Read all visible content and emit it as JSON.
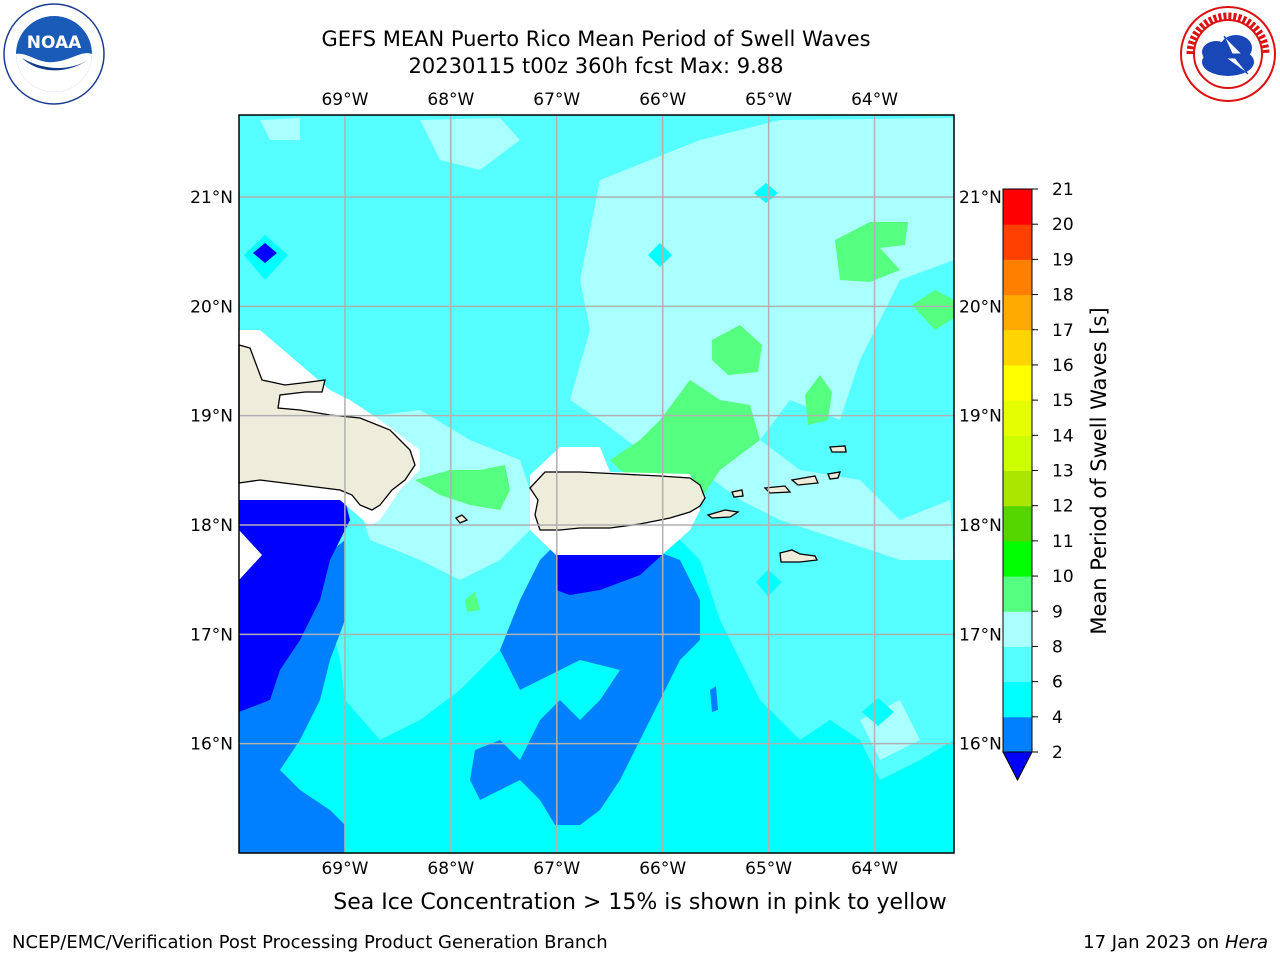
{
  "header": {
    "title_line1": "GEFS MEAN Puerto Rico Mean Period of Swell Waves",
    "title_line2": "20230115 t00z 360h fcst   Max: 9.88"
  },
  "logos": {
    "left": {
      "name": "noaa-logo",
      "text": "NOAA",
      "ring_text": "NATIONAL OCEANIC AND ATMOSPHERIC ADMINISTRATION · U.S. DEPARTMENT OF COMMERCE"
    },
    "right": {
      "name": "nws-logo",
      "ring_text": "NATIONAL WEATHER SERVICE"
    }
  },
  "map": {
    "lon_ticks": [
      "69°W",
      "68°W",
      "67°W",
      "66°W",
      "65°W",
      "64°W"
    ],
    "lat_ticks": [
      "21°N",
      "20°N",
      "19°N",
      "18°N",
      "17°N",
      "16°N"
    ],
    "lon_values": [
      -69,
      -68,
      -67,
      -66,
      -65,
      -64
    ],
    "lat_values": [
      21,
      20,
      19,
      18,
      17,
      16
    ],
    "extent": {
      "lon_min": -70,
      "lon_max": -63.25,
      "lat_min": 15,
      "lat_max": 21.75
    },
    "colors": {
      "land": "#eeeddc",
      "grid": "#b0b0b0"
    }
  },
  "colorbar": {
    "label": "Mean Period of Swell Waves [s]",
    "ticks": [
      "2",
      "4",
      "6",
      "8",
      "9",
      "10",
      "11",
      "12",
      "13",
      "14",
      "15",
      "16",
      "17",
      "18",
      "19",
      "20",
      "21"
    ],
    "colors": [
      "#0000ff",
      "#0080ff",
      "#00ffff",
      "#55ffff",
      "#aaffff",
      "#55ff80",
      "#00ff00",
      "#55d500",
      "#aae600",
      "#ccff00",
      "#e6ff00",
      "#ffff00",
      "#ffd500",
      "#ffaa00",
      "#ff8000",
      "#ff4000",
      "#ff0000"
    ]
  },
  "footer": {
    "note": "Sea Ice Concentration > 15% is shown in pink to yellow",
    "left": "NCEP/EMC/Verification Post Processing Product Generation Branch",
    "right_prefix": "17 Jan 2023 on ",
    "right_machine": "Hera"
  }
}
